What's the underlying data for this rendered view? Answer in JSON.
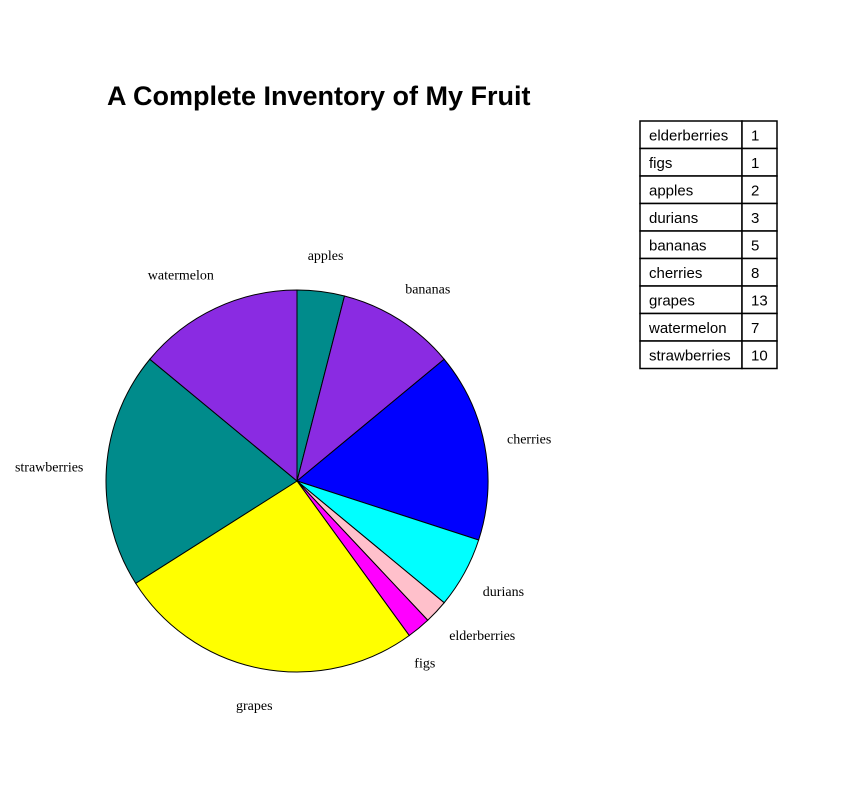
{
  "chart_data": {
    "type": "pie",
    "title": "A Complete Inventory of My Fruit",
    "categories": [
      "apples",
      "bananas",
      "cherries",
      "durians",
      "elderberries",
      "figs",
      "grapes",
      "strawberries",
      "watermelon"
    ],
    "values": [
      2,
      5,
      8,
      3,
      1,
      1,
      13,
      10,
      7
    ],
    "colors": [
      "#008b8b",
      "#8a2be2",
      "#0000ff",
      "#00ffff",
      "#ffc0cb",
      "#ff00ff",
      "#ffff00",
      "#008b8b",
      "#8a2be2"
    ],
    "start": "12 o'clock",
    "direction": "clockwise",
    "legend": "table, top-right"
  },
  "table": {
    "rows": [
      {
        "name": "elderberries",
        "value": "1"
      },
      {
        "name": "figs",
        "value": "1"
      },
      {
        "name": "apples",
        "value": "2"
      },
      {
        "name": "durians",
        "value": "3"
      },
      {
        "name": "bananas",
        "value": "5"
      },
      {
        "name": "cherries",
        "value": "8"
      },
      {
        "name": "grapes",
        "value": "13"
      },
      {
        "name": "watermelon",
        "value": "7"
      },
      {
        "name": "strawberries",
        "value": "10"
      }
    ]
  }
}
